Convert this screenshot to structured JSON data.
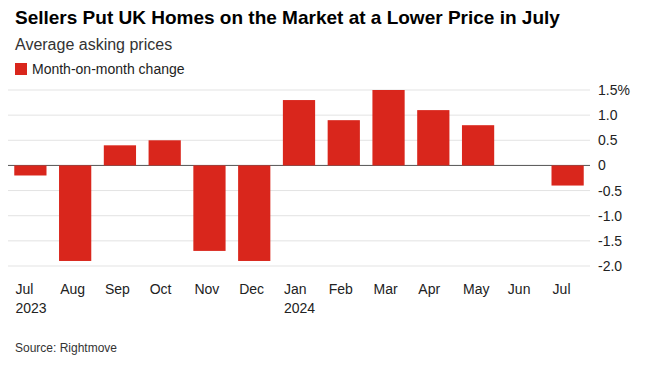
{
  "chart_data": {
    "type": "bar",
    "title": "Sellers Put UK Homes on the Market at a Lower Price in July",
    "subtitle": "Average asking prices",
    "source": "Source: Rightmove",
    "categories": [
      "Jul 2023",
      "Aug",
      "Sep",
      "Oct",
      "Nov",
      "Dec",
      "Jan 2024",
      "Feb",
      "Mar",
      "Apr",
      "May",
      "Jun",
      "Jul"
    ],
    "series": [
      {
        "name": "Month-on-month change",
        "color": "#d9261c",
        "values": [
          -0.2,
          -1.9,
          0.4,
          0.5,
          -1.7,
          -1.9,
          1.3,
          0.9,
          1.5,
          1.1,
          0.8,
          0.0,
          -0.4
        ]
      }
    ],
    "ylim": [
      -2,
      1.5
    ],
    "yticks": [
      {
        "value": 1.5,
        "label": "1.5%"
      },
      {
        "value": 1,
        "label": "1.0"
      },
      0.5,
      0,
      -0.5,
      {
        "value": -1,
        "label": "-1.0"
      },
      -1.5,
      {
        "value": -2,
        "label": "-2.0"
      }
    ],
    "grid": true,
    "legend": "top-left"
  }
}
